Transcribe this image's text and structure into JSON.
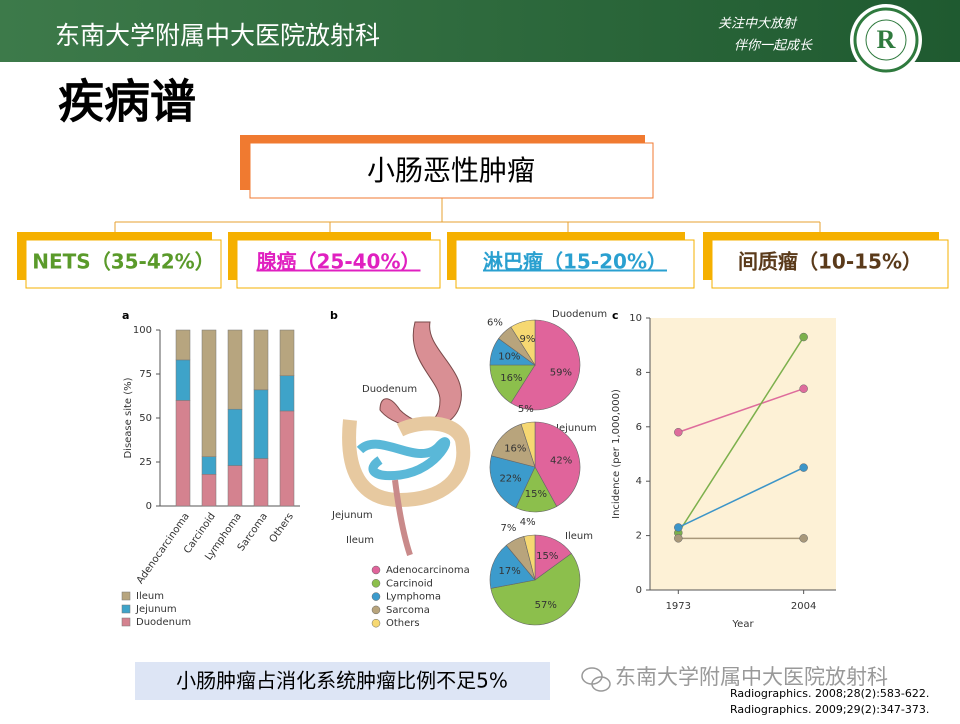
{
  "header": {
    "title": "东南大学附属中大医院放射科",
    "slogan": [
      "关注中大放射",
      "伴你一起成长"
    ]
  },
  "title": "疾病谱",
  "tree": {
    "root": "小肠恶性肿瘤",
    "children": [
      "NETS（35-42%）",
      "腺癌（25-40%）",
      "淋巴瘤（15-20%）",
      "间质瘤（10-15%）"
    ]
  },
  "anatomy": {
    "labels": [
      "Duodenum",
      "Jejunum",
      "Ileum"
    ]
  },
  "chart_data": [
    {
      "type": "bar",
      "panel": "a",
      "stacked": true,
      "ylabel": "Disease site (%)",
      "categories": [
        "Adenocarcinoma",
        "Carcinoid",
        "Lymphoma",
        "Sarcoma",
        "Others"
      ],
      "series": [
        {
          "name": "Duodenum",
          "color": "#d4828f",
          "values": [
            60,
            18,
            23,
            27,
            54
          ]
        },
        {
          "name": "Jejunum",
          "color": "#3ea3c9",
          "values": [
            23,
            10,
            32,
            39,
            20
          ]
        },
        {
          "name": "Ileum",
          "color": "#b7a57f",
          "values": [
            17,
            72,
            45,
            34,
            26
          ]
        }
      ],
      "ylim": [
        0,
        100
      ],
      "yticks": [
        0,
        25,
        50,
        75,
        100
      ]
    },
    {
      "type": "pie",
      "panel": "b",
      "title": "Duodenum",
      "categories": [
        "Adenocarcinoma",
        "Carcinoid",
        "Lymphoma",
        "Sarcoma",
        "Others"
      ],
      "colors": [
        "#e0649b",
        "#8cbf4c",
        "#3c9bcc",
        "#b8a47c",
        "#f6d872"
      ],
      "values": [
        59,
        16,
        10,
        6,
        9
      ],
      "value_labels": [
        "59%",
        "16%",
        "10%",
        "6%",
        "9%"
      ]
    },
    {
      "type": "pie",
      "title": "Jejunum",
      "categories": [
        "Adenocarcinoma",
        "Carcinoid",
        "Lymphoma",
        "Sarcoma",
        "Others"
      ],
      "colors": [
        "#e0649b",
        "#8cbf4c",
        "#3c9bcc",
        "#b8a47c",
        "#f6d872"
      ],
      "values": [
        42,
        15,
        22,
        16,
        5
      ],
      "value_labels": [
        "42%",
        "15%",
        "22%",
        "16%",
        "5%"
      ]
    },
    {
      "type": "pie",
      "title": "Ileum",
      "categories": [
        "Adenocarcinoma",
        "Carcinoid",
        "Lymphoma",
        "Sarcoma",
        "Others"
      ],
      "colors": [
        "#e0649b",
        "#8cbf4c",
        "#3c9bcc",
        "#b8a47c",
        "#f6d872"
      ],
      "values": [
        15,
        57,
        17,
        7,
        4
      ],
      "value_labels": [
        "15%",
        "57%",
        "17%",
        "7%",
        "4%"
      ]
    },
    {
      "type": "line",
      "panel": "c",
      "xlabel": "Year",
      "ylabel": "Incidence (per 1,000,000)",
      "x": [
        1973,
        2004
      ],
      "xlim": [
        1966,
        2012
      ],
      "xticks": [
        1973,
        2004
      ],
      "ylim": [
        0,
        10
      ],
      "yticks": [
        0,
        2,
        4,
        6,
        8,
        10
      ],
      "series": [
        {
          "color": "#de6c9c",
          "values": [
            5.8,
            7.4
          ]
        },
        {
          "color": "#7cb04c",
          "values": [
            2.1,
            9.3
          ]
        },
        {
          "color": "#3c95c8",
          "values": [
            2.3,
            4.5
          ]
        },
        {
          "color": "#a8987a",
          "values": [
            1.9,
            1.9
          ]
        }
      ]
    }
  ],
  "footer": {
    "note": "小肠肿瘤占消化系统肿瘤比例不足5%",
    "watermark": "东南大学附属中大医院放射科",
    "refs": [
      "Radiographics.  2008;28(2):583-622.",
      "Radiographics.  2009;29(2):347-373."
    ]
  }
}
